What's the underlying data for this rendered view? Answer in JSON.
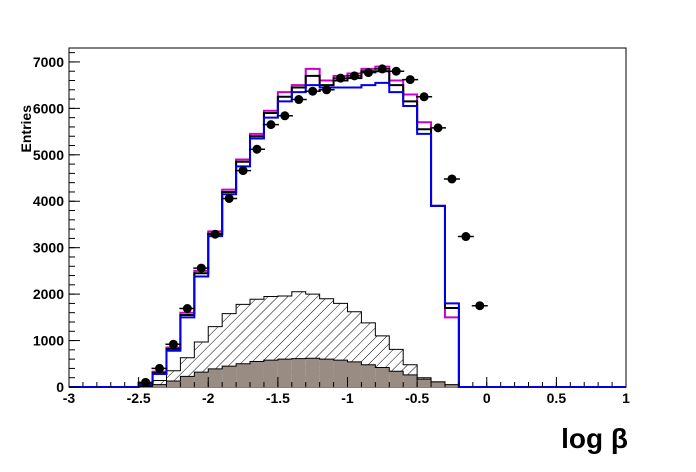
{
  "chart_data": {
    "type": "histogram",
    "xlabel": "log β",
    "ylabel": "Entries",
    "xlim": [
      -3,
      1
    ],
    "ylim": [
      0,
      7300
    ],
    "bin_width": 0.1,
    "xticks": [
      -3,
      -2.5,
      -2,
      -1.5,
      -1,
      -0.5,
      0,
      0.5,
      1
    ],
    "xtick_labels": [
      "-3",
      "-2.5",
      "-2",
      "-1.5",
      "-1",
      "-0.5",
      "0",
      "0.5",
      "1"
    ],
    "yticks": [
      0,
      1000,
      2000,
      3000,
      4000,
      5000,
      6000,
      7000
    ],
    "ytick_labels": [
      "0",
      "1000",
      "2000",
      "3000",
      "4000",
      "5000",
      "6000",
      "7000"
    ],
    "grid": false,
    "colors": {
      "magenta": "#cc00cc",
      "black": "#000000",
      "blue": "#0000ee",
      "hatched": "#000000",
      "grey_fill": "#998c82",
      "markers": "#000000"
    },
    "series": [
      {
        "style": "step-magenta",
        "x_low": -2.5,
        "values": [
          70,
          330,
          850,
          1600,
          2500,
          3350,
          4250,
          4900,
          5450,
          5950,
          6350,
          6500,
          6850,
          6600,
          6700,
          6750,
          6850,
          6900,
          6600,
          6300,
          5700,
          3900,
          1500
        ]
      },
      {
        "style": "step-black",
        "x_low": -2.5,
        "values": [
          70,
          300,
          820,
          1550,
          2450,
          3300,
          4200,
          4850,
          5400,
          5900,
          6250,
          6450,
          6700,
          6500,
          6600,
          6650,
          6800,
          6800,
          6500,
          6150,
          5550,
          3900,
          1700
        ]
      },
      {
        "style": "step-blue",
        "x_low": -2.5,
        "values": [
          60,
          280,
          780,
          1500,
          2380,
          3250,
          4150,
          4750,
          5350,
          5800,
          6150,
          6350,
          6500,
          6450,
          6450,
          6450,
          6500,
          6550,
          6350,
          6050,
          5450,
          3900,
          1800
        ]
      },
      {
        "style": "hatched",
        "x_low": -2.5,
        "values": [
          30,
          140,
          350,
          630,
          970,
          1300,
          1580,
          1780,
          1890,
          1950,
          1960,
          2050,
          2000,
          1900,
          1800,
          1620,
          1380,
          1100,
          810,
          480,
          200,
          110,
          40
        ]
      },
      {
        "style": "grey-filled",
        "x_low": -2.5,
        "values": [
          10,
          50,
          130,
          230,
          320,
          390,
          450,
          500,
          550,
          580,
          600,
          610,
          620,
          600,
          580,
          540,
          480,
          420,
          340,
          260,
          170,
          110,
          50
        ]
      },
      {
        "style": "data-points",
        "x": [
          -2.45,
          -2.35,
          -2.25,
          -2.15,
          -2.05,
          -1.95,
          -1.85,
          -1.75,
          -1.65,
          -1.55,
          -1.45,
          -1.35,
          -1.25,
          -1.15,
          -1.05,
          -0.95,
          -0.85,
          -0.75,
          -0.65,
          -0.55,
          -0.45,
          -0.35,
          -0.25,
          -0.15,
          -0.05
        ],
        "values": [
          100,
          400,
          920,
          1690,
          2560,
          3290,
          4060,
          4660,
          5120,
          5650,
          5840,
          6190,
          6370,
          6400,
          6650,
          6700,
          6770,
          6850,
          6800,
          6620,
          6250,
          5580,
          4480,
          3240,
          1750
        ]
      }
    ]
  }
}
